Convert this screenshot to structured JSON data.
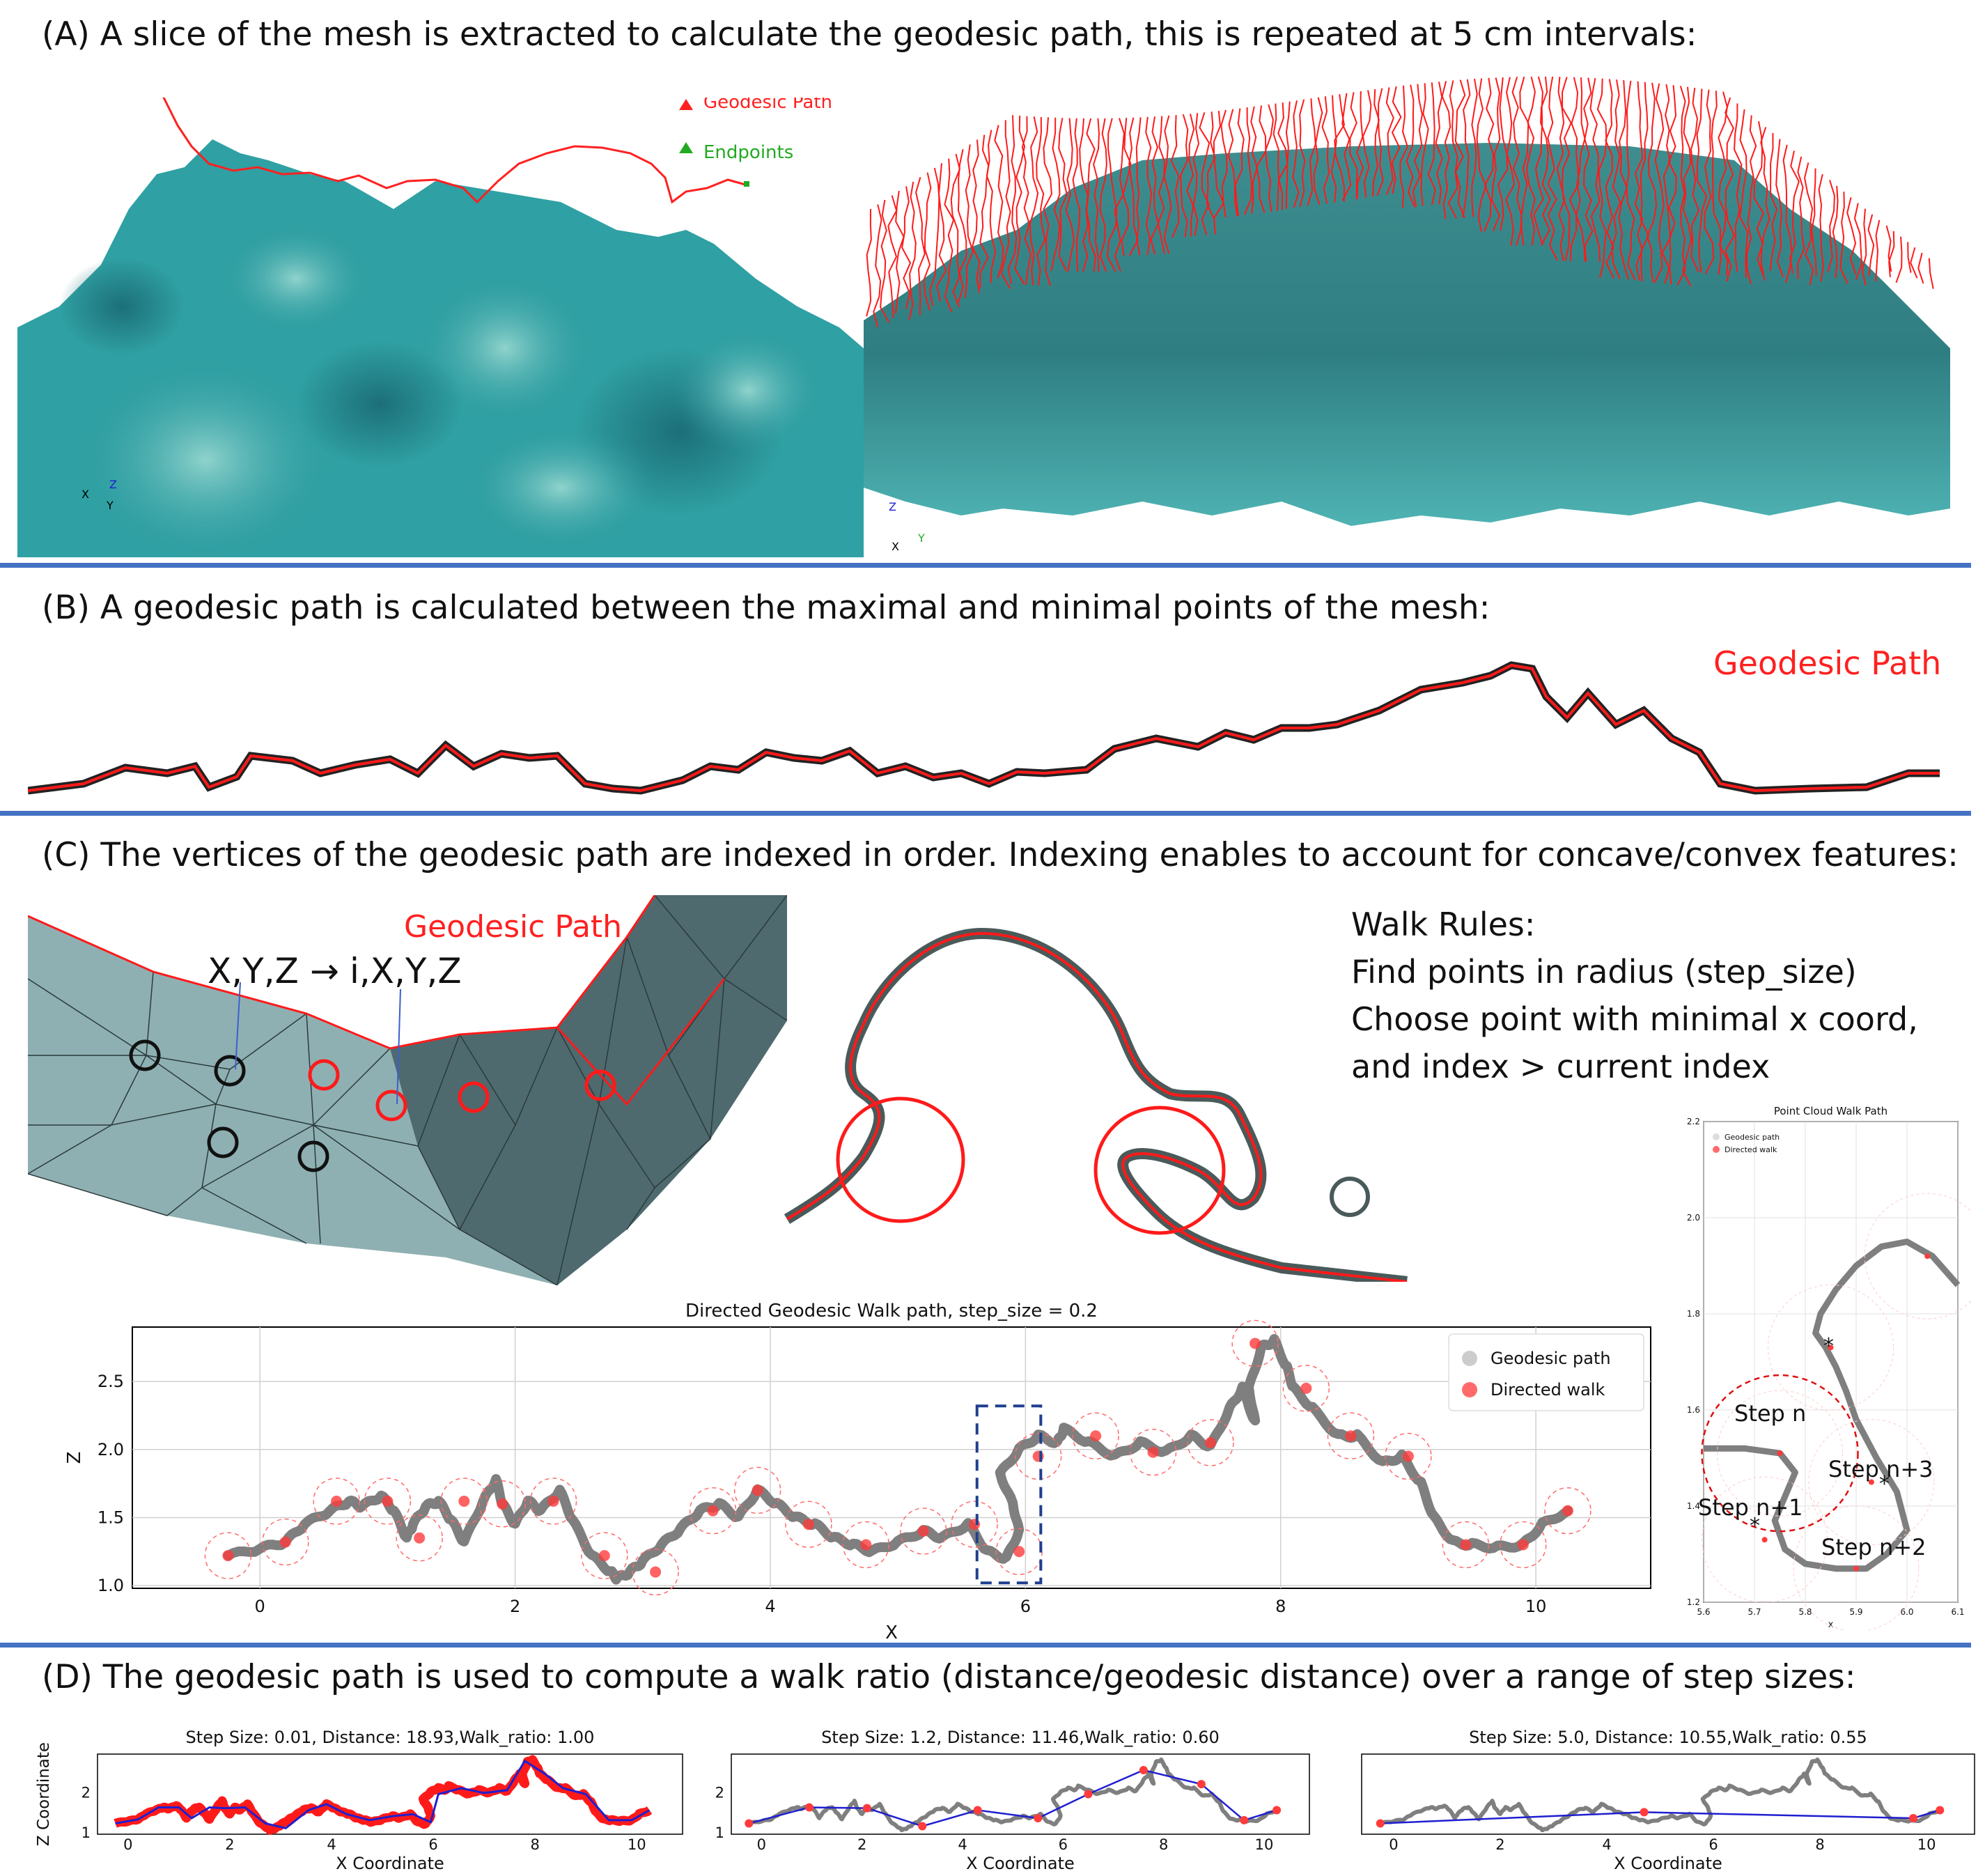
{
  "sections": {
    "a_heading": "(A) A slice of the mesh is extracted to calculate the geodesic path, this is repeated at 5 cm intervals:",
    "b_heading": "(B) A geodesic path is calculated between the maximal and minimal points of the mesh:",
    "c_heading": "(C) The vertices of the geodesic path are indexed in order. Indexing enables to account for concave/convex features:",
    "d_heading": "(D) The geodesic path is used to compute a walk ratio (distance/geodesic distance) over a range of step sizes:"
  },
  "panel_a": {
    "legend_path": "Geodesic Path",
    "legend_endpoints": "Endpoints",
    "axis_x": "X",
    "axis_y": "Y",
    "axis_z": "Z"
  },
  "panel_b": {
    "label": "Geodesic Path"
  },
  "panel_c": {
    "mesh_label": "Geodesic Path",
    "index_left": "X,Y,Z",
    "index_right": "i,X,Y,Z",
    "arrow": "→",
    "rules_title": "Walk Rules:",
    "rule_1": "Find points in radius (step_size)",
    "rule_2": "Choose point with minimal x coord,",
    "rule_3": "and index > current index",
    "step_n": "Step n",
    "step_n1": "Step n+1",
    "step_n2": "Step n+2",
    "step_n3": "Step n+3",
    "star": "*"
  },
  "colors": {
    "path": "#ff0000",
    "endpoint": "#22aa22",
    "walk": "#1f1fd0",
    "geodesic": "#7f7f7f",
    "divider": "#4472c4"
  },
  "chart_data": [
    {
      "id": "main_walk",
      "type": "line",
      "title": "Directed Geodesic Walk path, step_size = 0.2",
      "xlabel": "X",
      "ylabel": "Z",
      "xlim": [
        -1.0,
        10.9
      ],
      "ylim": [
        0.98,
        2.9
      ],
      "xticks": [
        0,
        2,
        4,
        6,
        8,
        10
      ],
      "yticks": [
        1.0,
        1.5,
        2.0,
        2.5
      ],
      "legend": [
        "Geodesic path",
        "Directed walk"
      ],
      "legend_position": "top-right",
      "series": [
        {
          "name": "Geodesic path",
          "x": [
            -0.25,
            0.0,
            0.2,
            0.35,
            0.55,
            0.7,
            0.8,
            0.95,
            1.05,
            1.15,
            1.2,
            1.3,
            1.4,
            1.5,
            1.6,
            1.75,
            1.85,
            1.9,
            2.0,
            2.1,
            2.2,
            2.35,
            2.45,
            2.6,
            2.75,
            2.8,
            2.9,
            3.0,
            3.15,
            3.3,
            3.45,
            3.6,
            3.75,
            3.9,
            4.05,
            4.2,
            4.35,
            4.5,
            4.65,
            4.8,
            5.0,
            5.2,
            5.35,
            5.55,
            5.7,
            5.85,
            5.95,
            5.9,
            5.8,
            5.95,
            6.1,
            6.25,
            6.3,
            6.5,
            6.7,
            6.9,
            7.1,
            7.3,
            7.45,
            7.6,
            7.7,
            7.8,
            7.75,
            7.85,
            7.95,
            8.05,
            8.1,
            8.25,
            8.45,
            8.6,
            8.8,
            8.95,
            9.1,
            9.2,
            9.35,
            9.5,
            9.7,
            9.9,
            10.05,
            10.25
          ],
          "y": [
            1.22,
            1.27,
            1.32,
            1.45,
            1.55,
            1.62,
            1.58,
            1.66,
            1.55,
            1.35,
            1.45,
            1.58,
            1.62,
            1.48,
            1.32,
            1.62,
            1.78,
            1.6,
            1.45,
            1.62,
            1.55,
            1.7,
            1.48,
            1.22,
            1.1,
            1.05,
            1.1,
            1.18,
            1.3,
            1.42,
            1.55,
            1.6,
            1.5,
            1.7,
            1.6,
            1.5,
            1.45,
            1.35,
            1.3,
            1.25,
            1.32,
            1.4,
            1.35,
            1.45,
            1.25,
            1.2,
            1.4,
            1.6,
            1.82,
            2.0,
            2.1,
            2.05,
            2.15,
            2.05,
            1.95,
            2.05,
            1.98,
            2.1,
            2.02,
            2.3,
            2.45,
            2.2,
            2.45,
            2.75,
            2.8,
            2.6,
            2.45,
            2.3,
            2.1,
            2.1,
            1.9,
            1.95,
            1.75,
            1.5,
            1.32,
            1.3,
            1.28,
            1.3,
            1.45,
            1.55
          ]
        },
        {
          "name": "Directed walk",
          "x": [
            -0.25,
            0.2,
            0.6,
            1.0,
            1.25,
            1.6,
            1.9,
            2.3,
            2.7,
            3.1,
            3.55,
            3.9,
            4.3,
            4.75,
            5.2,
            5.6,
            5.95,
            6.1,
            6.55,
            7.0,
            7.45,
            7.8,
            8.2,
            8.55,
            9.0,
            9.45,
            9.9,
            10.25
          ],
          "y": [
            1.22,
            1.32,
            1.62,
            1.62,
            1.35,
            1.62,
            1.6,
            1.62,
            1.22,
            1.1,
            1.55,
            1.7,
            1.45,
            1.3,
            1.4,
            1.45,
            1.25,
            1.95,
            2.1,
            1.98,
            2.05,
            2.78,
            2.45,
            2.1,
            1.95,
            1.3,
            1.3,
            1.55
          ]
        }
      ]
    },
    {
      "id": "point_cloud_walk",
      "type": "scatter",
      "title": "Point Cloud Walk Path",
      "xlabel": "x",
      "ylabel": "",
      "xlim": [
        5.6,
        6.1
      ],
      "ylim": [
        1.2,
        2.2
      ],
      "xticks": [
        5.6,
        5.7,
        5.8,
        5.9,
        6.0,
        6.1
      ],
      "yticks": [
        1.2,
        1.4,
        1.6,
        1.8,
        2.0,
        2.2
      ],
      "legend": [
        "Geodesic path",
        "Directed walk"
      ],
      "legend_position": "top-left",
      "series": [
        {
          "name": "Geodesic path",
          "x": [
            5.6,
            5.68,
            5.75,
            5.78,
            5.76,
            5.74,
            5.76,
            5.8,
            5.86,
            5.92,
            5.96,
            6.0,
            5.98,
            5.94,
            5.9,
            5.88,
            5.86,
            5.84,
            5.82,
            5.83,
            5.86,
            5.9,
            5.95,
            6.0,
            6.05,
            6.1
          ],
          "y": [
            1.52,
            1.52,
            1.51,
            1.47,
            1.42,
            1.37,
            1.31,
            1.28,
            1.27,
            1.27,
            1.3,
            1.35,
            1.43,
            1.5,
            1.58,
            1.64,
            1.69,
            1.73,
            1.76,
            1.8,
            1.85,
            1.9,
            1.94,
            1.95,
            1.92,
            1.86
          ]
        },
        {
          "name": "Directed walk",
          "x": [
            5.75,
            5.72,
            5.9,
            5.93,
            5.85,
            6.04
          ],
          "y": [
            1.51,
            1.33,
            1.27,
            1.45,
            1.73,
            1.92
          ]
        }
      ]
    },
    {
      "id": "ratio_001",
      "type": "line",
      "title": "Step Size: 0.01, Distance: 18.93,Walk_ratio: 1.00",
      "xlabel": "X Coordinate",
      "ylabel": "Z Coordinate",
      "xlim": [
        -0.6,
        10.9
      ],
      "ylim": [
        0.95,
        2.95
      ],
      "xticks": [
        0,
        2,
        4,
        6,
        8,
        10
      ],
      "yticks": [
        1,
        2
      ],
      "walk_x": [
        -0.25,
        0.2,
        0.6,
        1.0,
        1.25,
        1.6,
        1.9,
        2.3,
        2.7,
        3.1,
        3.55,
        3.9,
        4.3,
        4.75,
        5.2,
        5.6,
        5.95,
        6.1,
        6.55,
        7.0,
        7.45,
        7.8,
        8.2,
        8.55,
        9.0,
        9.45,
        9.9,
        10.25
      ],
      "walk_y": [
        1.22,
        1.32,
        1.62,
        1.62,
        1.35,
        1.62,
        1.6,
        1.62,
        1.22,
        1.1,
        1.55,
        1.7,
        1.45,
        1.3,
        1.4,
        1.45,
        1.25,
        1.95,
        2.1,
        1.98,
        2.05,
        2.78,
        2.45,
        2.1,
        1.95,
        1.3,
        1.3,
        1.55
      ],
      "dense": true
    },
    {
      "id": "ratio_12",
      "type": "line",
      "title": "Step Size: 1.2, Distance: 11.46,Walk_ratio: 0.60",
      "xlabel": "X Coordinate",
      "ylabel": "",
      "xlim": [
        -0.6,
        10.9
      ],
      "ylim": [
        0.95,
        2.95
      ],
      "xticks": [
        0,
        2,
        4,
        6,
        8,
        10
      ],
      "yticks": [
        1,
        2
      ],
      "walk_x": [
        -0.25,
        0.95,
        2.1,
        3.2,
        4.3,
        5.5,
        6.5,
        7.6,
        8.75,
        9.6,
        10.25
      ],
      "walk_y": [
        1.22,
        1.62,
        1.6,
        1.15,
        1.55,
        1.35,
        1.95,
        2.55,
        2.2,
        1.3,
        1.55
      ],
      "dense": false
    },
    {
      "id": "ratio_50",
      "type": "line",
      "title": "Step Size: 5.0, Distance: 10.55,Walk_ratio: 0.55",
      "xlabel": "X Coordinate",
      "ylabel": "",
      "xlim": [
        -0.6,
        10.9
      ],
      "ylim": [
        0.95,
        2.95
      ],
      "xticks": [
        0,
        2,
        4,
        6,
        8,
        10
      ],
      "yticks": [],
      "walk_x": [
        -0.25,
        4.7,
        9.75,
        10.25
      ],
      "walk_y": [
        1.22,
        1.5,
        1.35,
        1.55
      ],
      "dense": false
    }
  ]
}
